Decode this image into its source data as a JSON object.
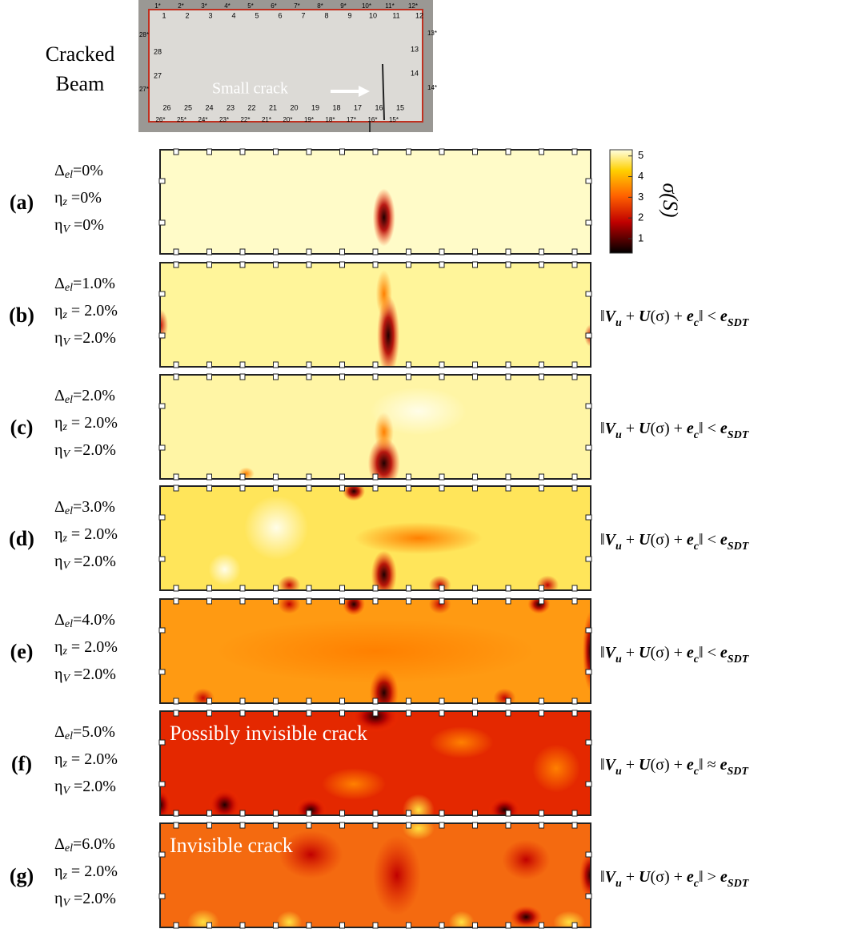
{
  "photo": {
    "title_lines": [
      "Cracked",
      "Beam"
    ],
    "annotation": "Small crack",
    "inner_labels": [
      "1",
      "2",
      "3",
      "4",
      "5",
      "6",
      "7",
      "8",
      "9",
      "10",
      "11",
      "12",
      "13",
      "14",
      "15",
      "16",
      "17",
      "18",
      "19",
      "20",
      "21",
      "22",
      "23",
      "24",
      "25",
      "26",
      "27",
      "28"
    ],
    "outer_labels": [
      "1*",
      "2*",
      "3*",
      "4*",
      "5*",
      "6*",
      "7*",
      "8*",
      "9*",
      "10*",
      "11*",
      "12*",
      "13*",
      "14*",
      "15*",
      "16*",
      "17*",
      "18*",
      "19*",
      "20*",
      "21*",
      "22*",
      "23*",
      "24*",
      "25*",
      "26*",
      "27*",
      "28*"
    ]
  },
  "colorbar": {
    "label": "σ(S)",
    "lim": [
      0.3,
      5.3
    ],
    "ticks": [
      1,
      2,
      3,
      4,
      5
    ]
  },
  "formula_left": [
    {
      "text": "‖",
      "style": "plain"
    },
    {
      "text": "V",
      "style": "bold"
    },
    {
      "text": "u",
      "style": "sub"
    },
    {
      "text": " + ",
      "style": "plain"
    },
    {
      "text": "U",
      "style": "bold"
    },
    {
      "text": "(σ) + ",
      "style": "plain"
    },
    {
      "text": "e",
      "style": "bold"
    },
    {
      "text": "c",
      "style": "sub"
    },
    {
      "text": "‖",
      "style": "plain"
    }
  ],
  "formula_right": [
    {
      "text": "e",
      "style": "bold"
    },
    {
      "text": "SDT",
      "style": "sub"
    }
  ],
  "panels": [
    {
      "label": "(a)",
      "params": [
        {
          "sym": "Δ",
          "sub": "el",
          "rest": "=0%"
        },
        {
          "sym": "η",
          "sub": "z",
          "rest": " =0%"
        },
        {
          "sym": "η",
          "sub": "V",
          "rest": " =0%"
        }
      ]
    },
    {
      "label": "(b)",
      "params": [
        {
          "sym": "Δ",
          "sub": "el",
          "rest": "=1.0%"
        },
        {
          "sym": "η",
          "sub": "z",
          "rest": " = 2.0%"
        },
        {
          "sym": "η",
          "sub": "V",
          "rest": " =2.0%"
        }
      ],
      "relation": " < "
    },
    {
      "label": "(c)",
      "params": [
        {
          "sym": "Δ",
          "sub": "el",
          "rest": "=2.0%"
        },
        {
          "sym": "η",
          "sub": "z",
          "rest": " = 2.0%"
        },
        {
          "sym": "η",
          "sub": "V",
          "rest": " =2.0%"
        }
      ],
      "relation": " < "
    },
    {
      "label": "(d)",
      "params": [
        {
          "sym": "Δ",
          "sub": "el",
          "rest": "=3.0%"
        },
        {
          "sym": "η",
          "sub": "z",
          "rest": " = 2.0%"
        },
        {
          "sym": "η",
          "sub": "V",
          "rest": " =2.0%"
        }
      ],
      "relation": " < "
    },
    {
      "label": "(e)",
      "params": [
        {
          "sym": "Δ",
          "sub": "el",
          "rest": "=4.0%"
        },
        {
          "sym": "η",
          "sub": "z",
          "rest": " = 2.0%"
        },
        {
          "sym": "η",
          "sub": "V",
          "rest": " =2.0%"
        }
      ],
      "relation": " < "
    },
    {
      "label": "(f)",
      "params": [
        {
          "sym": "Δ",
          "sub": "el",
          "rest": "=5.0%"
        },
        {
          "sym": "η",
          "sub": "z",
          "rest": " = 2.0%"
        },
        {
          "sym": "η",
          "sub": "V",
          "rest": " =2.0%"
        }
      ],
      "relation": " ≈ ",
      "annotation": "Possibly invisible crack"
    },
    {
      "label": "(g)",
      "params": [
        {
          "sym": "Δ",
          "sub": "el",
          "rest": "=6.0%"
        },
        {
          "sym": "η",
          "sub": "z",
          "rest": " = 2.0%"
        },
        {
          "sym": "η",
          "sub": "V",
          "rest": " =2.0%"
        }
      ],
      "relation": " > ",
      "annotation": "Invisible crack"
    }
  ]
}
